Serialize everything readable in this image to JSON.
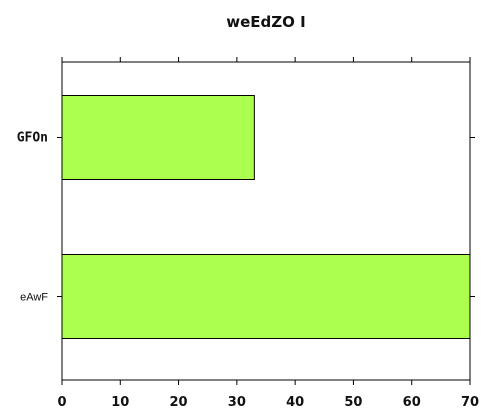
{
  "chart_data": {
    "type": "bar",
    "orientation": "horizontal",
    "title": "weEdZO I",
    "categories": [
      "GFOn",
      "eAwF"
    ],
    "values": [
      33,
      70
    ],
    "xlim": [
      0,
      70
    ],
    "xticks": [
      "0",
      "10",
      "20",
      "30",
      "40",
      "50",
      "60",
      "70"
    ],
    "xlabel": "",
    "ylabel": "",
    "grid": false,
    "bar_color": "#adff4f",
    "category_style": [
      "bold",
      "plain"
    ]
  }
}
